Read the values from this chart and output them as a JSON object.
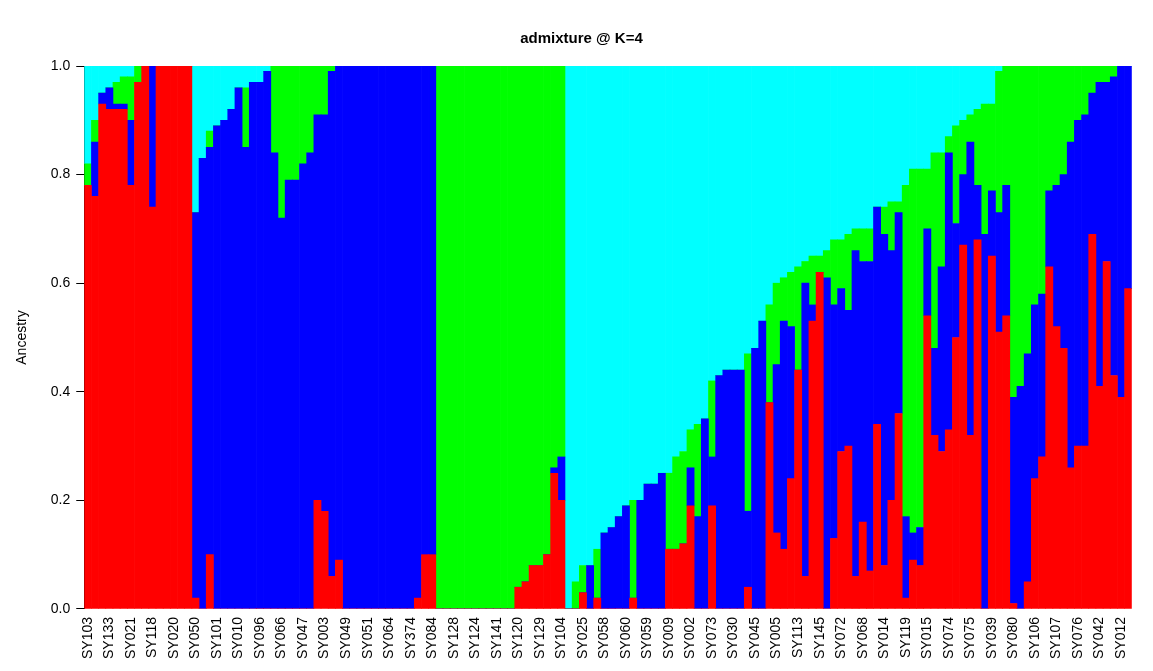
{
  "chart_data": {
    "type": "bar",
    "stacked": true,
    "title": "admixture @ K=4",
    "ylabel": "Ancestry",
    "legend": false,
    "grid": false,
    "categories": [
      "SY103",
      null,
      null,
      "SY133",
      null,
      null,
      "SY021",
      null,
      null,
      "SY118",
      null,
      null,
      "SY020",
      null,
      null,
      "SY050",
      null,
      null,
      "SY101",
      null,
      null,
      "SY010",
      null,
      null,
      "SY096",
      null,
      null,
      "SY066",
      null,
      null,
      "SY047",
      null,
      null,
      "SY003",
      null,
      null,
      "SY049",
      null,
      null,
      "SY051",
      null,
      null,
      "SY064",
      null,
      null,
      "SY374",
      null,
      null,
      "SY084",
      null,
      null,
      "SY128",
      null,
      null,
      "SY124",
      null,
      null,
      "SY141",
      null,
      null,
      "SY120",
      null,
      null,
      "SY129",
      null,
      null,
      "SY104",
      null,
      null,
      "SY025",
      null,
      null,
      "SY058",
      null,
      null,
      "SY060",
      null,
      null,
      "SY059",
      null,
      null,
      "SY009",
      null,
      null,
      "SY002",
      null,
      null,
      "SY073",
      null,
      null,
      "SY030",
      null,
      null,
      "SY045",
      null,
      null,
      "SY005",
      null,
      null,
      "SY113",
      null,
      null,
      "SY145",
      null,
      null,
      "SY072",
      null,
      null,
      "SY068",
      null,
      null,
      "SY014",
      null,
      null,
      "SY119",
      null,
      null,
      "SY015",
      null,
      null,
      "SY074",
      null,
      null,
      "SY075",
      null,
      null,
      "SY039",
      null,
      null,
      "SY080",
      null,
      null,
      "SY106",
      null,
      null,
      "SY107",
      null,
      null,
      "SY076",
      null,
      null,
      "SY042",
      null,
      null,
      "SY012",
      null
    ],
    "ylim": [
      0,
      1
    ],
    "yticks": [
      {
        "value": 0,
        "label": "0.0"
      },
      {
        "value": 0.2,
        "label": "0.2"
      },
      {
        "value": 0.4,
        "label": "0.4"
      },
      {
        "value": 0.6,
        "label": "0.6"
      },
      {
        "value": 0.8,
        "label": "0.8"
      },
      {
        "value": 1,
        "label": "1.0"
      }
    ],
    "series": [
      {
        "color": "#ff0000",
        "values": [
          0.78,
          0.76,
          0.93,
          0.92,
          0.92,
          0.92,
          0.78,
          0.97,
          1,
          0.74,
          1,
          1,
          1,
          1,
          1,
          0.02,
          0,
          0.1,
          0,
          0,
          0,
          0,
          0,
          0,
          0,
          0,
          0,
          0,
          0,
          0,
          0,
          0,
          0.2,
          0.18,
          0.06,
          0.09,
          0,
          0,
          0,
          0,
          0,
          0,
          0,
          0,
          0,
          0,
          0.02,
          0.1,
          0.1,
          0,
          0,
          0,
          0,
          0,
          0,
          0,
          0,
          0,
          0,
          0,
          0.04,
          0.05,
          0.08,
          0.08,
          0.1,
          0.25,
          0.2,
          0,
          0,
          0.03,
          0,
          0.02,
          0,
          0,
          0,
          0,
          0.02,
          0,
          0,
          0,
          0,
          0.11,
          0.11,
          0.12,
          0.19,
          0,
          0,
          0.19,
          0,
          0,
          0,
          0,
          0.04,
          0,
          0,
          0.38,
          0.14,
          0.11,
          0.24,
          0.44,
          0.06,
          0.53,
          0.62,
          0,
          0.13,
          0.29,
          0.3,
          0.06,
          0.16,
          0.07,
          0.34,
          0.08,
          0.2,
          0.36,
          0.02,
          0.09,
          0.08,
          0.54,
          0.32,
          0.29,
          0.33,
          0.5,
          0.67,
          0.32,
          0.68,
          0,
          0.65,
          0.51,
          0.54,
          0.01,
          0,
          0.05,
          0.24,
          0.28,
          0.63,
          0.52,
          0.48,
          0.26,
          0.3,
          0.3,
          0.69,
          0.41,
          0.64,
          0.43,
          0.39,
          0.59
        ]
      },
      {
        "color": "#0000ff",
        "values": [
          0,
          0.1,
          0.02,
          0.04,
          0.01,
          0.01,
          0.12,
          0,
          0,
          0.26,
          0,
          0,
          0,
          0,
          0,
          0.71,
          0.83,
          0.75,
          0.89,
          0.9,
          0.92,
          0.96,
          0.85,
          0.97,
          0.97,
          0.99,
          0.84,
          0.72,
          0.79,
          0.79,
          0.82,
          0.84,
          0.71,
          0.73,
          0.93,
          0.91,
          1,
          1,
          1,
          1,
          1,
          1,
          1,
          1,
          1,
          1,
          0.98,
          0.9,
          0.9,
          0,
          0,
          0,
          0,
          0,
          0,
          0,
          0,
          0,
          0,
          0,
          0,
          0,
          0,
          0,
          0,
          0.01,
          0.08,
          0,
          0,
          0,
          0.08,
          0,
          0.14,
          0.15,
          0.17,
          0.19,
          0,
          0.2,
          0.23,
          0.23,
          0.25,
          0,
          0,
          0,
          0.07,
          0.17,
          0.35,
          0.09,
          0.43,
          0.44,
          0.44,
          0.44,
          0.14,
          0.48,
          0.53,
          0,
          0.31,
          0.42,
          0.28,
          0,
          0.54,
          0.03,
          0,
          0.61,
          0.43,
          0.3,
          0.25,
          0.6,
          0.48,
          0.57,
          0.4,
          0.61,
          0.46,
          0.37,
          0.15,
          0.05,
          0.07,
          0.16,
          0.16,
          0.34,
          0.51,
          0.21,
          0.13,
          0.54,
          0.1,
          0.69,
          0.12,
          0.22,
          0.24,
          0.38,
          0.41,
          0.42,
          0.32,
          0.3,
          0.14,
          0.26,
          0.32,
          0.6,
          0.6,
          0.61,
          0.26,
          0.56,
          0.33,
          0.55,
          0.61,
          0.41
        ]
      },
      {
        "color": "#00ff00",
        "values": [
          0.04,
          0.04,
          0,
          0,
          0.04,
          0.05,
          0.08,
          0.03,
          0,
          0,
          0,
          0,
          0,
          0,
          0,
          0,
          0,
          0.03,
          0,
          0,
          0,
          0,
          0.11,
          0,
          0,
          0,
          0.16,
          0.28,
          0.21,
          0.21,
          0.18,
          0.16,
          0.09,
          0.09,
          0.01,
          0,
          0,
          0,
          0,
          0,
          0,
          0,
          0,
          0,
          0,
          0,
          0,
          0,
          0,
          1,
          1,
          1,
          1,
          1,
          1,
          1,
          1,
          1,
          1,
          1,
          0.96,
          0.95,
          0.92,
          0.92,
          0.9,
          0.74,
          0.72,
          0,
          0.05,
          0.05,
          0,
          0.09,
          0,
          0,
          0,
          0,
          0.18,
          0,
          0,
          0,
          0,
          0.14,
          0.17,
          0.17,
          0.07,
          0.17,
          0,
          0.14,
          0,
          0,
          0,
          0,
          0.29,
          0,
          0,
          0.18,
          0.15,
          0.08,
          0.1,
          0.19,
          0.04,
          0.09,
          0.03,
          0.05,
          0.12,
          0.09,
          0.14,
          0.04,
          0.06,
          0.06,
          0,
          0.05,
          0.09,
          0.02,
          0.61,
          0.67,
          0.66,
          0.11,
          0.36,
          0.21,
          0.03,
          0.18,
          0.1,
          0.05,
          0.14,
          0.24,
          0.16,
          0.26,
          0.22,
          0.61,
          0.59,
          0.53,
          0.44,
          0.42,
          0.23,
          0.22,
          0.2,
          0.14,
          0.1,
          0.09,
          0.05,
          0.03,
          0.03,
          0.02,
          0,
          0
        ]
      },
      {
        "color": "#00ffff",
        "values": [
          0.18,
          0.1,
          0.05,
          0.04,
          0.03,
          0.02,
          0.02,
          0,
          0,
          0,
          0,
          0,
          0,
          0,
          0,
          0.27,
          0.17,
          0.12,
          0.11,
          0.1,
          0.08,
          0.04,
          0.04,
          0.03,
          0.03,
          0.01,
          0,
          0,
          0,
          0,
          0,
          0,
          0,
          0,
          0,
          0,
          0,
          0,
          0,
          0,
          0,
          0,
          0,
          0,
          0,
          0,
          0,
          0,
          0,
          0,
          0,
          0,
          0,
          0,
          0,
          0,
          0,
          0,
          0,
          0,
          0,
          0,
          0,
          0,
          0,
          0,
          0,
          1,
          0.95,
          0.92,
          0.92,
          0.89,
          0.86,
          0.85,
          0.83,
          0.81,
          0.8,
          0.8,
          0.77,
          0.77,
          0.75,
          0.75,
          0.72,
          0.71,
          0.67,
          0.66,
          0.65,
          0.58,
          0.57,
          0.56,
          0.56,
          0.56,
          0.53,
          0.52,
          0.47,
          0.44,
          0.4,
          0.39,
          0.38,
          0.37,
          0.36,
          0.35,
          0.35,
          0.34,
          0.32,
          0.32,
          0.31,
          0.3,
          0.3,
          0.3,
          0.26,
          0.26,
          0.25,
          0.25,
          0.22,
          0.19,
          0.19,
          0.19,
          0.16,
          0.16,
          0.13,
          0.11,
          0.1,
          0.09,
          0.08,
          0.07,
          0.07,
          0.01,
          0,
          0,
          0,
          0,
          0,
          0,
          0,
          0,
          0,
          0,
          0,
          0,
          0,
          0,
          0,
          0,
          0,
          0
        ]
      }
    ]
  }
}
